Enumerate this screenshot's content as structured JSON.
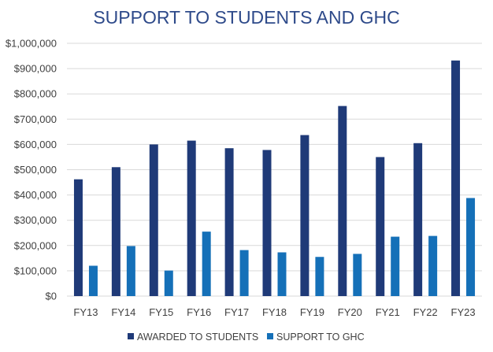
{
  "chart_data": {
    "type": "bar",
    "title": "SUPPORT TO STUDENTS AND GHC",
    "xlabel": "",
    "ylabel": "",
    "categories": [
      "FY13",
      "FY14",
      "FY15",
      "FY16",
      "FY17",
      "FY18",
      "FY19",
      "FY20",
      "FY21",
      "FY22",
      "FY23"
    ],
    "series": [
      {
        "name": "AWARDED TO STUDENTS",
        "color": "#1f3a78",
        "values": [
          462000,
          510000,
          600000,
          615000,
          585000,
          578000,
          637000,
          752000,
          550000,
          605000,
          932000
        ]
      },
      {
        "name": "SUPPORT TO GHC",
        "color": "#1570b8",
        "values": [
          120000,
          198000,
          101000,
          255000,
          182000,
          173000,
          155000,
          167000,
          235000,
          238000,
          388000
        ]
      }
    ],
    "ylim": [
      0,
      1000000
    ],
    "yticks": [
      0,
      100000,
      200000,
      300000,
      400000,
      500000,
      600000,
      700000,
      800000,
      900000,
      1000000
    ],
    "ytick_labels": [
      "$0",
      "$100,000",
      "$200,000",
      "$300,000",
      "$400,000",
      "$500,000",
      "$600,000",
      "$700,000",
      "$800,000",
      "$900,000",
      "$1,000,000"
    ],
    "grid": true,
    "legend_position": "bottom"
  },
  "colors": {
    "title": "#2e4a8a",
    "gridline": "#d9d9d9",
    "tick_text": "#404040"
  }
}
